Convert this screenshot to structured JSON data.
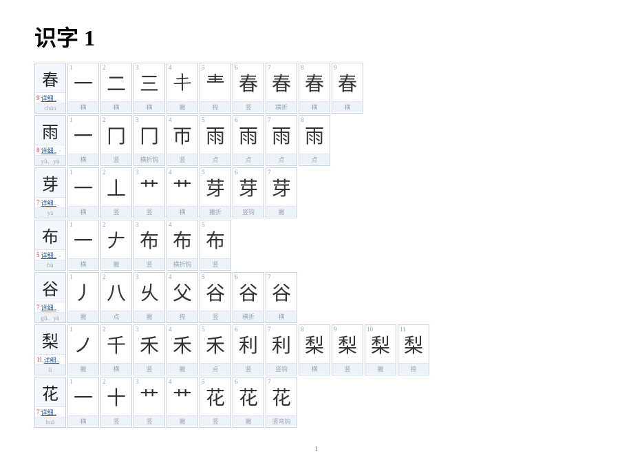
{
  "title": "识字 1",
  "detail_label": "详细..",
  "page_number": "1",
  "colors": {
    "cell_border": "#c7d6e6",
    "header_bg": "#f4f8fc",
    "label_bg": "#eef3f9",
    "label_text": "#9aa8b6",
    "count_red": "#d33",
    "link_blue": "#2a5db0"
  },
  "rows": [
    {
      "char": "春",
      "count": "9",
      "pinyin": "chūn",
      "strokes": [
        {
          "n": "1",
          "g": "一",
          "label": "横"
        },
        {
          "n": "2",
          "g": "二",
          "label": "横"
        },
        {
          "n": "3",
          "g": "三",
          "label": "横"
        },
        {
          "n": "4",
          "g": "𰀁",
          "label": "撇"
        },
        {
          "n": "5",
          "g": "龶",
          "label": "捺"
        },
        {
          "n": "6",
          "g": "春",
          "label": "竖"
        },
        {
          "n": "7",
          "g": "春",
          "label": "横折"
        },
        {
          "n": "8",
          "g": "春",
          "label": "横"
        },
        {
          "n": "9",
          "g": "春",
          "label": "横"
        }
      ]
    },
    {
      "char": "雨",
      "count": "8",
      "pinyin": "yǔ、yù",
      "strokes": [
        {
          "n": "1",
          "g": "一",
          "label": "横"
        },
        {
          "n": "2",
          "g": "冂",
          "label": "竖"
        },
        {
          "n": "3",
          "g": "冂",
          "label": "横折钩"
        },
        {
          "n": "4",
          "g": "帀",
          "label": "竖"
        },
        {
          "n": "5",
          "g": "雨",
          "label": "点"
        },
        {
          "n": "6",
          "g": "雨",
          "label": "点"
        },
        {
          "n": "7",
          "g": "雨",
          "label": "点"
        },
        {
          "n": "8",
          "g": "雨",
          "label": "点"
        }
      ]
    },
    {
      "char": "芽",
      "count": "7",
      "pinyin": "yá",
      "strokes": [
        {
          "n": "1",
          "g": "一",
          "label": "横"
        },
        {
          "n": "2",
          "g": "丄",
          "label": "竖"
        },
        {
          "n": "3",
          "g": "艹",
          "label": "竖"
        },
        {
          "n": "4",
          "g": "艹",
          "label": "横"
        },
        {
          "n": "5",
          "g": "芽",
          "label": "撇折"
        },
        {
          "n": "6",
          "g": "芽",
          "label": "竖钩"
        },
        {
          "n": "7",
          "g": "芽",
          "label": "撇"
        }
      ]
    },
    {
      "char": "布",
      "count": "5",
      "pinyin": "bù",
      "strokes": [
        {
          "n": "1",
          "g": "一",
          "label": "横"
        },
        {
          "n": "2",
          "g": "𠂇",
          "label": "撇"
        },
        {
          "n": "3",
          "g": "布",
          "label": "竖"
        },
        {
          "n": "4",
          "g": "布",
          "label": "横折钩"
        },
        {
          "n": "5",
          "g": "布",
          "label": "竖"
        }
      ]
    },
    {
      "char": "谷",
      "count": "7",
      "pinyin": "gǔ、yù",
      "strokes": [
        {
          "n": "1",
          "g": "丿",
          "label": "撇"
        },
        {
          "n": "2",
          "g": "八",
          "label": "点"
        },
        {
          "n": "3",
          "g": "乆",
          "label": "撇"
        },
        {
          "n": "4",
          "g": "父",
          "label": "捺"
        },
        {
          "n": "5",
          "g": "谷",
          "label": "竖"
        },
        {
          "n": "6",
          "g": "谷",
          "label": "横折"
        },
        {
          "n": "7",
          "g": "谷",
          "label": "横"
        }
      ]
    },
    {
      "char": "梨",
      "count": "11",
      "pinyin": "lí",
      "strokes": [
        {
          "n": "1",
          "g": "ノ",
          "label": "撇"
        },
        {
          "n": "2",
          "g": "千",
          "label": "横"
        },
        {
          "n": "3",
          "g": "禾",
          "label": "竖"
        },
        {
          "n": "4",
          "g": "禾",
          "label": "撇"
        },
        {
          "n": "5",
          "g": "禾",
          "label": "点"
        },
        {
          "n": "6",
          "g": "利",
          "label": "竖"
        },
        {
          "n": "7",
          "g": "利",
          "label": "竖钩"
        },
        {
          "n": "8",
          "g": "梨",
          "label": "横"
        },
        {
          "n": "9",
          "g": "梨",
          "label": "竖"
        },
        {
          "n": "10",
          "g": "梨",
          "label": "撇"
        },
        {
          "n": "11",
          "g": "梨",
          "label": "捺"
        }
      ]
    },
    {
      "char": "花",
      "count": "7",
      "pinyin": "huā",
      "strokes": [
        {
          "n": "1",
          "g": "一",
          "label": "横"
        },
        {
          "n": "2",
          "g": "十",
          "label": "竖"
        },
        {
          "n": "3",
          "g": "艹",
          "label": "竖"
        },
        {
          "n": "4",
          "g": "艹",
          "label": "撇"
        },
        {
          "n": "5",
          "g": "花",
          "label": "竖"
        },
        {
          "n": "6",
          "g": "花",
          "label": "撇"
        },
        {
          "n": "7",
          "g": "花",
          "label": "竖弯钩"
        }
      ]
    }
  ]
}
